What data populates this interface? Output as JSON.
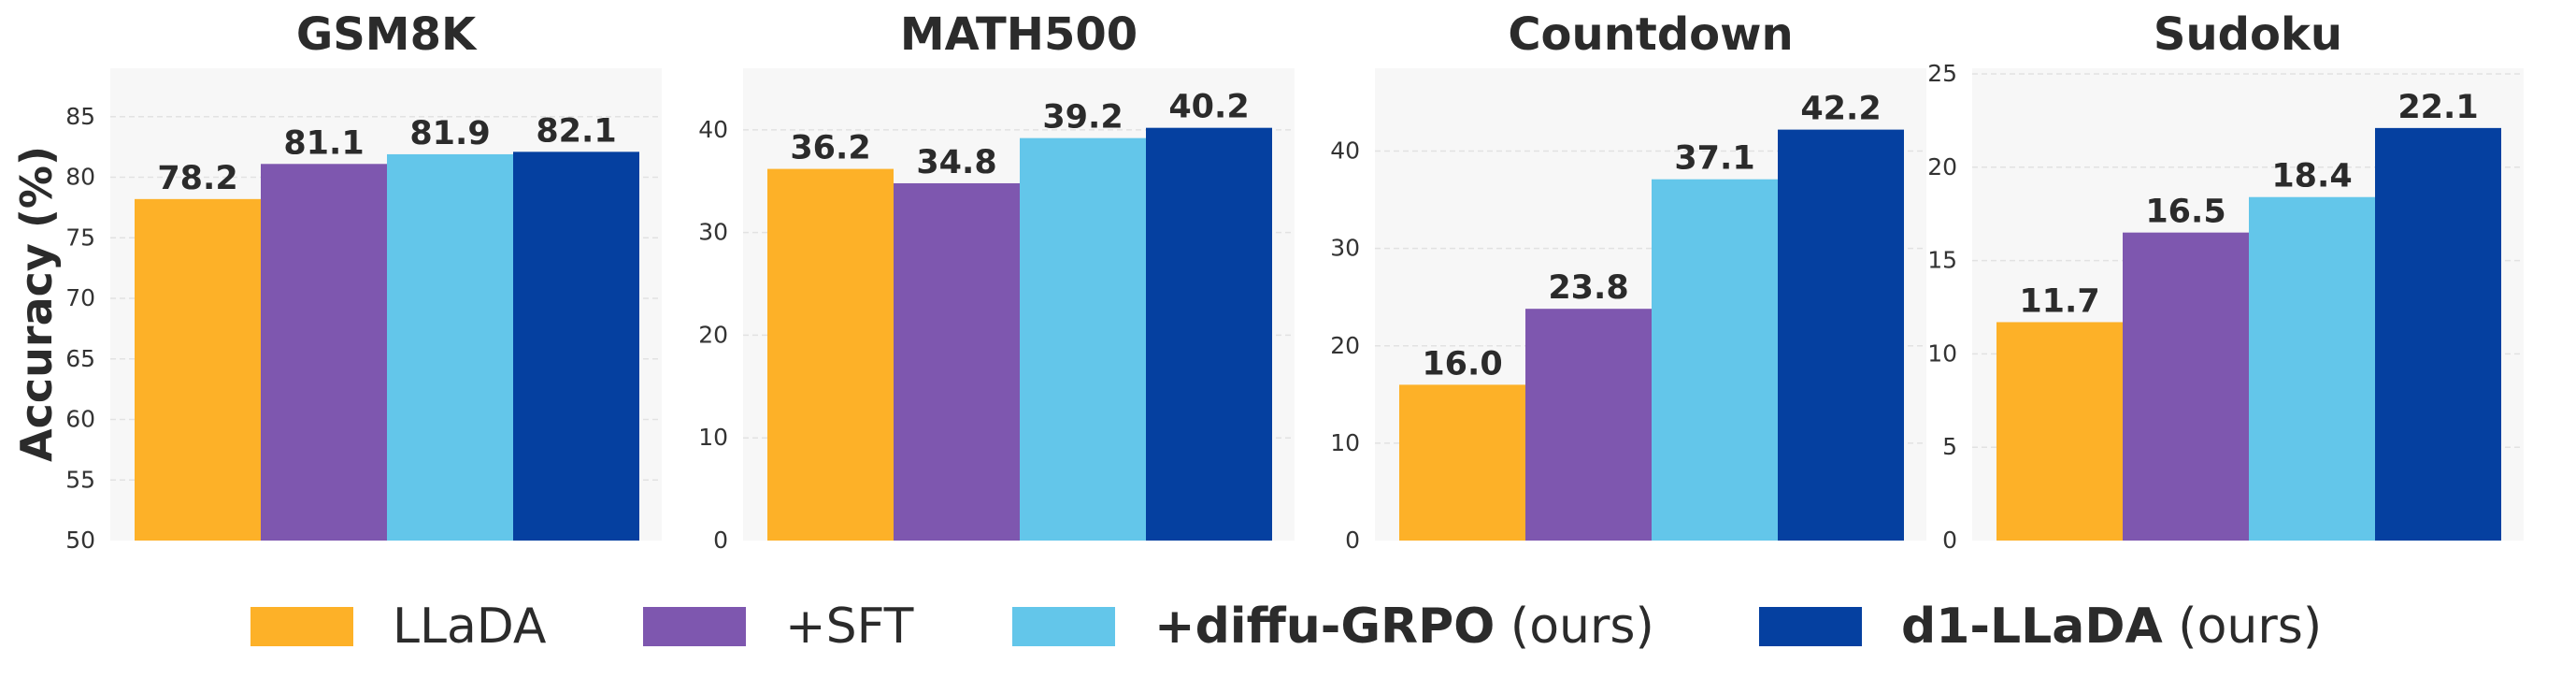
{
  "chart_data": {
    "type": "bar",
    "ylabel": "Accuracy (%)",
    "series": [
      {
        "key": "llada",
        "name": "LLaDA",
        "color": "#FDB128"
      },
      {
        "key": "sft",
        "name": "+SFT",
        "color": "#7E57AF"
      },
      {
        "key": "grpo",
        "name": "+diffu-GRPO",
        "name_suffix": "(ours)",
        "color": "#63C6EA"
      },
      {
        "key": "d1",
        "name": "d1-LLaDA",
        "name_suffix": "(ours)",
        "color": "#0540A0"
      }
    ],
    "panels": [
      {
        "title": "GSM8K",
        "ylim": [
          50,
          89
        ],
        "yticks": [
          50,
          55,
          60,
          65,
          70,
          75,
          80,
          85
        ],
        "values": [
          78.2,
          81.1,
          81.9,
          82.1
        ]
      },
      {
        "title": "MATH500",
        "ylim": [
          0,
          46
        ],
        "yticks": [
          0,
          10,
          20,
          30,
          40
        ],
        "values": [
          36.2,
          34.8,
          39.2,
          40.2
        ]
      },
      {
        "title": "Countdown",
        "ylim": [
          0,
          48.5
        ],
        "yticks": [
          0,
          10,
          20,
          30,
          40
        ],
        "values": [
          16.0,
          23.8,
          37.1,
          42.2
        ]
      },
      {
        "title": "Sudoku",
        "ylim": [
          0,
          25.3
        ],
        "yticks": [
          0,
          5,
          10,
          15,
          20,
          25
        ],
        "values": [
          11.7,
          16.5,
          18.4,
          22.1
        ]
      }
    ],
    "grid": true,
    "legend": "bottom"
  }
}
